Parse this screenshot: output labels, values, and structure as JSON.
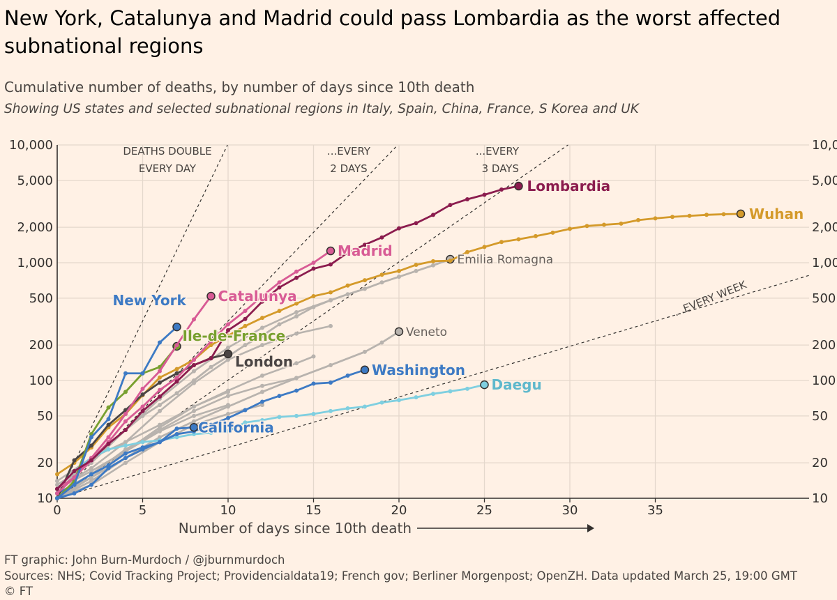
{
  "title": "New York, Catalunya and Madrid could pass Lombardia as the worst affected subnational regions",
  "subtitle": "Cumulative number of deaths, by number of days since 10th death",
  "subtitle2": "Showing US states and selected subnational regions in Italy, Spain, China, France, S Korea and UK",
  "footer": {
    "credit": "FT graphic: John Burn-Murdoch / @jburnmurdoch",
    "sources": "Sources: NHS; Covid Tracking Project; Providencialdata19; French gov; Berliner Morgenpost; OpenZH. Data updated March 25, 19:00 GMT",
    "copyright": "© FT"
  },
  "chart_data": {
    "type": "line",
    "xlabel": "Number of days since 10th death",
    "xlim": [
      0,
      44
    ],
    "ylim": [
      10,
      10000
    ],
    "yscale": "log",
    "x_ticks": [
      0,
      5,
      10,
      15,
      20,
      25,
      30,
      35
    ],
    "y_ticks": [
      10,
      20,
      50,
      100,
      200,
      500,
      1000,
      2000,
      5000,
      10000
    ],
    "y_tick_labels": [
      "10",
      "20",
      "50",
      "100",
      "200",
      "500",
      "1,000",
      "2,000",
      "5,000",
      "10,000"
    ],
    "grid": true,
    "colors": {
      "background": "#FFF1E5",
      "grid": "#E4D8CC",
      "axis": "#33302E",
      "guide": "#33302E",
      "Lombardia": "#8B1C4E",
      "Wuhan": "#D49A2A",
      "Madrid": "#D85B95",
      "Catalunya": "#D85B95",
      "New York": "#3D7AC4",
      "Ile-de-France": "#78A02F",
      "London": "#4A4544",
      "Washington": "#3D7AC4",
      "California": "#3D7AC4",
      "Daegu": "#7FCFE0",
      "other": "#B8B3AE"
    },
    "doubling_guides": [
      {
        "label_lines": [
          "DEATHS DOUBLE",
          "EVERY DAY"
        ],
        "doubling_days": 1
      },
      {
        "label_lines": [
          "...EVERY",
          "2 DAYS"
        ],
        "doubling_days": 2
      },
      {
        "label_lines": [
          "...EVERY",
          "3 DAYS"
        ],
        "doubling_days": 3
      },
      {
        "label_lines": [
          "...EVERY WEEK"
        ],
        "doubling_days": 7
      }
    ],
    "highlighted_series": [
      {
        "name": "Lombardia",
        "x": [
          0,
          1,
          2,
          3,
          4,
          5,
          6,
          7,
          8,
          9,
          10,
          11,
          12,
          13,
          14,
          15,
          16,
          17,
          18,
          19,
          20,
          21,
          22,
          23,
          24,
          25,
          26,
          27
        ],
        "y": [
          12,
          17,
          21,
          29,
          38,
          55,
          73,
          98,
          135,
          154,
          267,
          333,
          468,
          617,
          744,
          890,
          966,
          1218,
          1420,
          1640,
          1959,
          2168,
          2549,
          3095,
          3456,
          3776,
          4178,
          4474
        ]
      },
      {
        "name": "Wuhan",
        "x": [
          0,
          1,
          2,
          3,
          4,
          5,
          6,
          7,
          8,
          9,
          10,
          11,
          12,
          13,
          14,
          15,
          16,
          17,
          18,
          19,
          20,
          21,
          22,
          23,
          24,
          25,
          26,
          27,
          28,
          29,
          30,
          31,
          32,
          33,
          34,
          35,
          36,
          37,
          38,
          39,
          40
        ],
        "y": [
          16,
          20,
          27,
          40,
          52,
          75,
          106,
          125,
          150,
          200,
          240,
          290,
          340,
          390,
          450,
          520,
          560,
          640,
          710,
          790,
          850,
          960,
          1030,
          1040,
          1230,
          1360,
          1500,
          1580,
          1680,
          1800,
          1940,
          2050,
          2100,
          2150,
          2300,
          2380,
          2450,
          2500,
          2550,
          2580,
          2600
        ]
      },
      {
        "name": "Madrid",
        "x": [
          0,
          1,
          2,
          3,
          4,
          5,
          6,
          7,
          8,
          9,
          10,
          11,
          12,
          13,
          14,
          15,
          16
        ],
        "y": [
          12,
          15,
          21,
          30,
          45,
          60,
          83,
          105,
          150,
          215,
          300,
          390,
          520,
          680,
          840,
          1000,
          1260
        ]
      },
      {
        "name": "Catalunya",
        "x": [
          0,
          1,
          2,
          3,
          4,
          5,
          6,
          7,
          8,
          9
        ],
        "y": [
          11,
          15,
          22,
          33,
          52,
          85,
          120,
          200,
          330,
          520
        ]
      },
      {
        "name": "New York",
        "x": [
          0,
          1,
          2,
          3,
          4,
          5,
          6,
          7
        ],
        "y": [
          10,
          13,
          33,
          47,
          115,
          115,
          210,
          285
        ]
      },
      {
        "name": "Ile-de-France",
        "x": [
          0,
          1,
          2,
          3,
          4,
          5,
          6,
          7
        ],
        "y": [
          10,
          14,
          35,
          59,
          80,
          115,
          130,
          195
        ]
      },
      {
        "name": "London",
        "x": [
          0,
          1,
          2,
          3,
          4,
          5,
          6,
          7,
          8,
          9,
          10
        ],
        "y": [
          10,
          21,
          28,
          42,
          56,
          76,
          96,
          115,
          135,
          155,
          168
        ]
      },
      {
        "name": "Washington",
        "x": [
          0,
          1,
          2,
          3,
          4,
          5,
          6,
          7,
          8,
          9,
          10,
          11,
          12,
          13,
          14,
          15,
          16,
          17,
          18
        ],
        "y": [
          10,
          11,
          13,
          18,
          22,
          26,
          30,
          35,
          37,
          42,
          48,
          56,
          66,
          74,
          82,
          94,
          96,
          110,
          123
        ]
      },
      {
        "name": "California",
        "x": [
          0,
          1,
          2,
          3,
          4,
          5,
          6,
          7,
          8
        ],
        "y": [
          11,
          13,
          16,
          19,
          24,
          27,
          30,
          39,
          40
        ]
      },
      {
        "name": "Daegu",
        "x": [
          0,
          1,
          2,
          3,
          4,
          5,
          6,
          7,
          8,
          9,
          10,
          11,
          12,
          13,
          14,
          15,
          16,
          17,
          18,
          19,
          20,
          21,
          22,
          23,
          24,
          25
        ],
        "y": [
          12,
          17,
          22,
          26,
          28,
          30,
          31,
          33,
          35,
          36,
          37,
          44,
          46,
          49,
          50,
          52,
          55,
          58,
          60,
          65,
          68,
          72,
          77,
          81,
          85,
          92
        ]
      },
      {
        "name": "Emilia Romagna",
        "x": [
          0,
          1,
          2,
          3,
          4,
          5,
          6,
          7,
          8,
          9,
          10,
          11,
          12,
          13,
          14,
          15,
          16,
          17,
          18,
          19,
          20,
          21,
          22,
          23
        ],
        "y": [
          11,
          16,
          22,
          29,
          38,
          50,
          62,
          78,
          100,
          130,
          160,
          200,
          240,
          300,
          350,
          420,
          480,
          540,
          600,
          680,
          760,
          850,
          950,
          1070
        ]
      },
      {
        "name": "Veneto",
        "x": [
          0,
          2,
          4,
          6,
          8,
          10,
          12,
          14,
          16,
          18,
          19,
          20
        ],
        "y": [
          10,
          14,
          22,
          33,
          45,
          60,
          80,
          105,
          135,
          175,
          210,
          260
        ]
      }
    ],
    "other_series": [
      {
        "x": [
          0,
          2,
          4,
          6,
          8,
          10,
          12,
          14,
          16
        ],
        "y": [
          12,
          18,
          30,
          55,
          95,
          150,
          200,
          250,
          290
        ]
      },
      {
        "x": [
          0,
          2,
          4,
          6,
          8,
          10,
          12,
          14,
          16
        ],
        "y": [
          13,
          20,
          38,
          70,
          120,
          190,
          280,
          380,
          480
        ]
      },
      {
        "x": [
          0,
          2,
          4,
          6,
          8,
          10,
          12,
          14,
          15
        ],
        "y": [
          10,
          15,
          25,
          40,
          60,
          82,
          110,
          140,
          160
        ]
      },
      {
        "x": [
          0,
          2,
          4,
          6,
          8,
          10,
          12,
          14
        ],
        "y": [
          11,
          16,
          26,
          38,
          55,
          74,
          90,
          105
        ]
      },
      {
        "x": [
          0,
          2,
          4,
          6,
          8,
          10,
          12
        ],
        "y": [
          10,
          13,
          20,
          30,
          42,
          52,
          62
        ]
      },
      {
        "x": [
          0,
          2,
          4,
          6,
          8,
          10
        ],
        "y": [
          12,
          17,
          25,
          37,
          50,
          62
        ]
      },
      {
        "x": [
          0,
          2,
          4,
          6,
          8,
          10
        ],
        "y": [
          14,
          22,
          30,
          42,
          60,
          80
        ]
      },
      {
        "x": [
          0,
          2,
          4,
          6
        ],
        "y": [
          11,
          15,
          22,
          30
        ]
      }
    ],
    "direct_labels": [
      {
        "series": "Lombardia",
        "text": "Lombardia",
        "color": "#8B1C4E",
        "bold": true
      },
      {
        "series": "Wuhan",
        "text": "Wuhan",
        "color": "#D49A2A",
        "bold": true
      },
      {
        "series": "Madrid",
        "text": "Madrid",
        "color": "#D85B95",
        "bold": true
      },
      {
        "series": "Catalunya",
        "text": "Catalunya",
        "color": "#D85B95",
        "bold": true
      },
      {
        "series": "New York",
        "text": "New York",
        "color": "#3D7AC4",
        "bold": true
      },
      {
        "series": "Ile-de-France",
        "text": "Ile-de-France",
        "color": "#78A02F",
        "bold": true
      },
      {
        "series": "London",
        "text": "London",
        "color": "#4A4544",
        "bold": true
      },
      {
        "series": "Washington",
        "text": "Washington",
        "color": "#3D7AC4",
        "bold": true
      },
      {
        "series": "California",
        "text": "California",
        "color": "#3D7AC4",
        "bold": true
      },
      {
        "series": "Daegu",
        "text": "Daegu",
        "color": "#5FB8CC",
        "bold": true
      },
      {
        "series": "Emilia Romagna",
        "text": "Emilia Romagna",
        "color": "#66605C",
        "bold": false
      },
      {
        "series": "Veneto",
        "text": "Veneto",
        "color": "#66605C",
        "bold": false
      }
    ]
  }
}
